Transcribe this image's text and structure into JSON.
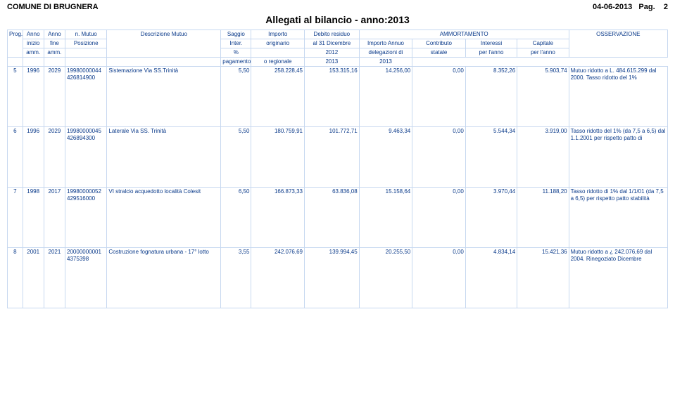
{
  "header": {
    "comune": "COMUNE DI BRUGNERA",
    "date": "04-06-2013",
    "pag_label": "Pag.",
    "pag_num": "2",
    "title": "Allegati al bilancio - anno:2013"
  },
  "thead": {
    "ammortamento": "AMMORTAMENTO",
    "r1": {
      "prog": "Prog.",
      "anno1": "Anno",
      "anno2": "Anno",
      "mutuo": "n. Mutuo",
      "desc": "Descrizione Mutuo",
      "sagg": "Saggio",
      "imp": "Importo",
      "deb": "Debito residuo",
      "impan": "Importo Annuo",
      "contr": "Contributo",
      "inter": "Interessi",
      "cap": "Capitale",
      "oss": "OSSERVAZIONE"
    },
    "r2": {
      "anno1": "inizio",
      "anno2": "fine",
      "mutuo": "Posizione",
      "sagg": "Inter.",
      "imp": "originario",
      "deb": "al 31 Dicembre",
      "impan": "delegazioni di",
      "contr": "statale",
      "inter": "per l'anno",
      "cap": "per l'anno"
    },
    "r3": {
      "anno1": "amm.",
      "anno2": "amm.",
      "sagg": "%",
      "deb": "2012",
      "impan": "pagamento",
      "contr": "o regionale",
      "inter": "2013",
      "cap": "2013"
    }
  },
  "rows": [
    {
      "prog": "5",
      "anno1": "1996",
      "anno2": "2029",
      "mutuo": "19980000044",
      "pos": "426814900",
      "desc": "Sistemazione Via SS.Trinità",
      "sagg": "5,50",
      "imp": "258.228,45",
      "deb": "153.315,16",
      "impan": "14.256,00",
      "contr": "0,00",
      "inter": "8.352,26",
      "cap": "5.903,74",
      "oss": "Mutuo ridotto a L. 484.615.299 dal 2000. Tasso ridotto del 1%"
    },
    {
      "prog": "6",
      "anno1": "1996",
      "anno2": "2029",
      "mutuo": "19980000045",
      "pos": "426894300",
      "desc": "Laterale Via SS. Trinità",
      "sagg": "5,50",
      "imp": "180.759,91",
      "deb": "101.772,71",
      "impan": "9.463,34",
      "contr": "0,00",
      "inter": "5.544,34",
      "cap": "3.919,00",
      "oss": "Tasso ridotto del 1% (da 7,5 a 6,5) dal 1.1.2001 per rispetto patto di"
    },
    {
      "prog": "7",
      "anno1": "1998",
      "anno2": "2017",
      "mutuo": "19980000052",
      "pos": "429516000",
      "desc": "VI stralcio acquedotto località Colesit",
      "sagg": "6,50",
      "imp": "166.873,33",
      "deb": "63.836,08",
      "impan": "15.158,64",
      "contr": "0,00",
      "inter": "3.970,44",
      "cap": "11.188,20",
      "oss": "Tasso ridotto di 1% dal 1/1/01 (da 7,5 a 6,5) per rispetto patto stabilità"
    },
    {
      "prog": "8",
      "anno1": "2001",
      "anno2": "2021",
      "mutuo": "20000000001",
      "pos": "4375398",
      "desc": "Costruzione fognatura urbana - 17° lotto",
      "sagg": "3,55",
      "imp": "242.076,69",
      "deb": "139.994,45",
      "impan": "20.255,50",
      "contr": "0,00",
      "inter": "4.834,14",
      "cap": "15.421,36",
      "oss": "Mutuo ridotto a ¿ 242.076,69 dal 2004. Rinegoziato Dicembre"
    }
  ]
}
